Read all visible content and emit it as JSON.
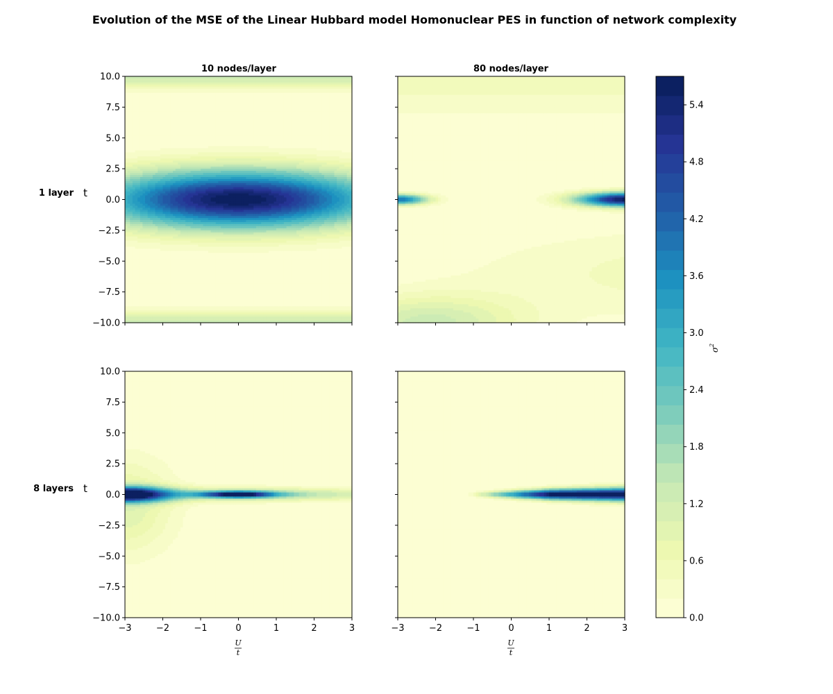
{
  "figure": {
    "title": "Evolution of the MSE of the Linear Hubbard model Homonuclear PES in function of network complexity"
  },
  "chart_data": {
    "type": "heatmap",
    "title": "Evolution of the MSE of the Linear Hubbard model Homonuclear PES in function of network complexity",
    "column_titles": [
      "10 nodes/layer",
      "80 nodes/layer"
    ],
    "row_labels": [
      "1 layer",
      "8 layers"
    ],
    "ylabel": "t",
    "xlabel_numerator": "U",
    "xlabel_denominator": "t",
    "xlim": [
      -3,
      3
    ],
    "ylim": [
      -10,
      10
    ],
    "xticks": [
      -3,
      -2,
      -1,
      0,
      1,
      2,
      3
    ],
    "xtick_labels": [
      "−3",
      "−2",
      "−1",
      "0",
      "1",
      "2",
      "3"
    ],
    "yticks": [
      10,
      7.5,
      5,
      2.5,
      0,
      -2.5,
      -5,
      -7.5,
      -10
    ],
    "ytick_labels": [
      "10.0",
      "7.5",
      "5.0",
      "2.5",
      "0.0",
      "−2.5",
      "−5.0",
      "−7.5",
      "−10.0"
    ],
    "colormap": "YlGnBu",
    "colorbar": {
      "label": "σ",
      "label_superscript": "2",
      "range": [
        0,
        5.7
      ],
      "levels": 28,
      "ticks": [
        0.0,
        0.6,
        1.2,
        1.8,
        2.4,
        3.0,
        3.6,
        4.2,
        4.8,
        5.4
      ],
      "tick_labels": [
        "0.0",
        "0.6",
        "1.2",
        "1.8",
        "2.4",
        "3.0",
        "3.6",
        "4.2",
        "4.8",
        "5.4"
      ]
    },
    "panels": [
      {
        "row": "1 layer",
        "column": "10 nodes/layer",
        "max_value": 5.7,
        "peak_at": [
          0,
          0
        ],
        "description_values": {
          "center_max": 5.7,
          "edge_t_abs_10": 1.3
        }
      },
      {
        "row": "1 layer",
        "column": "80 nodes/layer",
        "max_value": 5.6,
        "peak_at": [
          3,
          0
        ],
        "description_values": {
          "left_edge_peak": 4.0,
          "right_edge_peak": 5.6
        }
      },
      {
        "row": "8 layers",
        "column": "10 nodes/layer",
        "max_value": 5.6,
        "peak_at": [
          -3,
          0
        ]
      },
      {
        "row": "8 layers",
        "column": "80 nodes/layer",
        "max_value": 5.7,
        "peak_at": [
          3,
          0
        ]
      }
    ]
  }
}
